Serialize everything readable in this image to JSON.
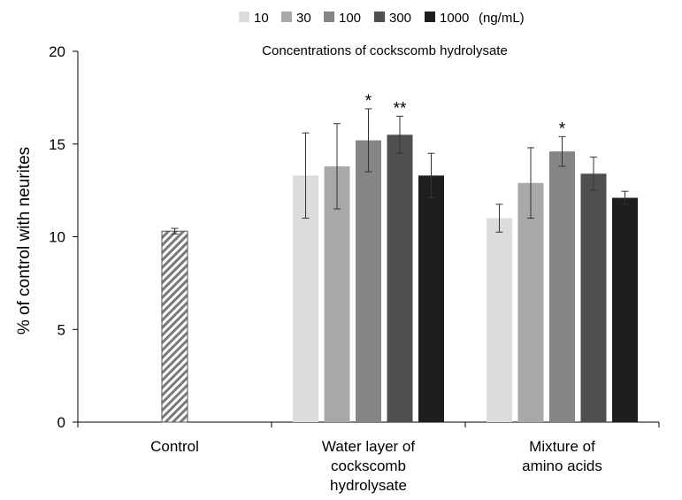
{
  "chart_data": {
    "type": "bar",
    "ylabel": "% of control with neurites",
    "ylim": [
      0,
      20
    ],
    "yticks": [
      0,
      5,
      10,
      15,
      20
    ],
    "legend_title": "Concentrations of cockscomb hydrolysate",
    "legend_unit": "(ng/mL)",
    "legend_placement": "top-center",
    "grid": false,
    "series": [
      {
        "name": "10",
        "color": "#dcdcdc"
      },
      {
        "name": "30",
        "color": "#a8a8a8"
      },
      {
        "name": "100",
        "color": "#858585"
      },
      {
        "name": "300",
        "color": "#4f4f4f"
      },
      {
        "name": "1000",
        "color": "#1e1e1e"
      }
    ],
    "groups": [
      {
        "label_lines": [
          "Control"
        ],
        "bars": [
          {
            "value": 10.3,
            "error": 0.15,
            "pattern": "hatched",
            "sig": ""
          }
        ]
      },
      {
        "label_lines": [
          "Water layer of",
          "cockscomb",
          "hydrolysate"
        ],
        "bars": [
          {
            "series": 0,
            "value": 13.3,
            "error": 2.3,
            "sig": ""
          },
          {
            "series": 1,
            "value": 13.8,
            "error": 2.3,
            "sig": ""
          },
          {
            "series": 2,
            "value": 15.2,
            "error": 1.7,
            "sig": "*"
          },
          {
            "series": 3,
            "value": 15.5,
            "error": 1.0,
            "sig": "**"
          },
          {
            "series": 4,
            "value": 13.3,
            "error": 1.2,
            "sig": ""
          }
        ]
      },
      {
        "label_lines": [
          "Mixture of",
          "amino acids"
        ],
        "bars": [
          {
            "series": 0,
            "value": 11.0,
            "error": 0.75,
            "sig": ""
          },
          {
            "series": 1,
            "value": 12.9,
            "error": 1.9,
            "sig": ""
          },
          {
            "series": 2,
            "value": 14.6,
            "error": 0.8,
            "sig": "*"
          },
          {
            "series": 3,
            "value": 13.4,
            "error": 0.9,
            "sig": ""
          },
          {
            "series": 4,
            "value": 12.1,
            "error": 0.35,
            "sig": ""
          }
        ]
      }
    ]
  }
}
